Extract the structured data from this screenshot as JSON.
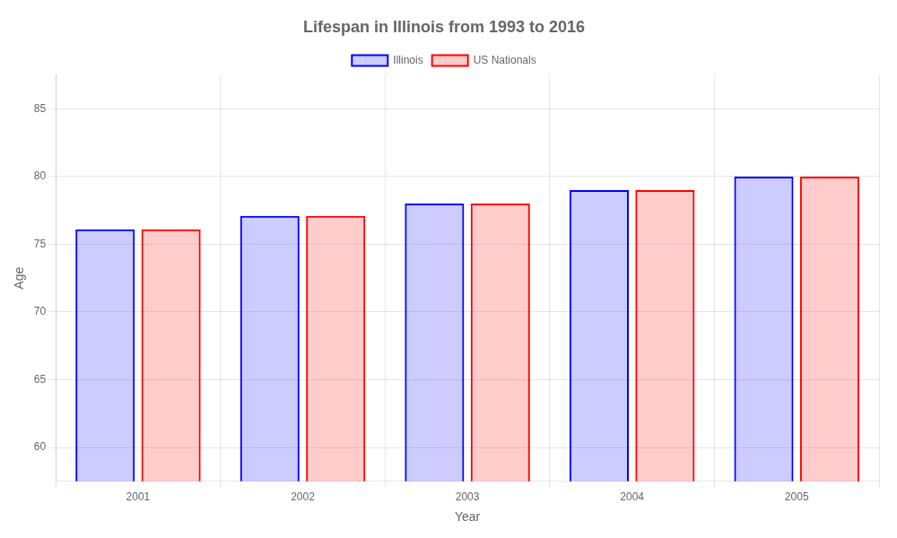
{
  "chart_data": {
    "type": "bar",
    "title": "Lifespan in Illinois from 1993 to 2016",
    "x_label": "Year",
    "y_label": "Age",
    "categories": [
      "2001",
      "2002",
      "2003",
      "2004",
      "2005"
    ],
    "series": [
      {
        "name": "Illinois",
        "color": "#0000ff",
        "values": [
          76.1,
          77.1,
          78.0,
          79.0,
          80.0
        ]
      },
      {
        "name": "US Nationals",
        "color": "#ff0000",
        "values": [
          76.1,
          77.1,
          78.0,
          79.0,
          80.0
        ]
      }
    ],
    "ylim": [
      57.5,
      87.5
    ],
    "yticks": [
      60,
      65,
      70,
      75,
      80,
      85
    ],
    "grid": true,
    "legend": "top"
  }
}
